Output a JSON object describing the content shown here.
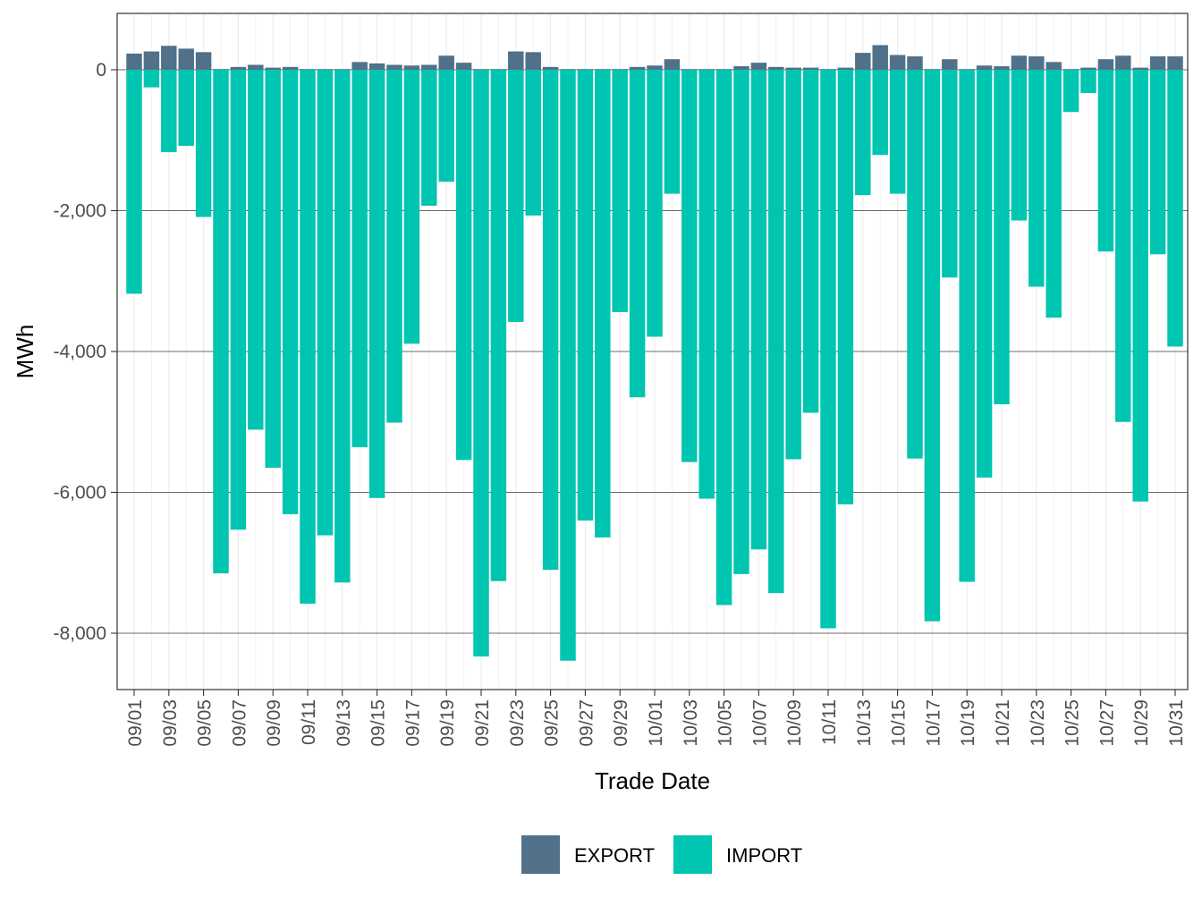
{
  "chart_data": {
    "type": "bar",
    "stacked": true,
    "title": "",
    "xlabel": "Trade Date",
    "ylabel": "MWh",
    "ylim": [
      -8800,
      800
    ],
    "yticks": [
      0,
      -2000,
      -4000,
      -6000,
      -8000
    ],
    "ytick_labels": [
      "0",
      "-2,000",
      "-4,000",
      "-6,000",
      "-8,000"
    ],
    "grid": true,
    "legend_position": "bottom",
    "categories": [
      "09/01",
      "09/02",
      "09/03",
      "09/04",
      "09/05",
      "09/06",
      "09/07",
      "09/08",
      "09/09",
      "09/10",
      "09/11",
      "09/12",
      "09/13",
      "09/14",
      "09/15",
      "09/16",
      "09/17",
      "09/18",
      "09/19",
      "09/20",
      "09/21",
      "09/22",
      "09/23",
      "09/24",
      "09/25",
      "09/26",
      "09/27",
      "09/28",
      "09/29",
      "09/30",
      "10/01",
      "10/02",
      "10/03",
      "10/04",
      "10/05",
      "10/06",
      "10/07",
      "10/08",
      "10/09",
      "10/10",
      "10/11",
      "10/12",
      "10/13",
      "10/14",
      "10/15",
      "10/16",
      "10/17",
      "10/18",
      "10/19",
      "10/20",
      "10/21",
      "10/22",
      "10/23",
      "10/24",
      "10/25",
      "10/26",
      "10/27",
      "10/28",
      "10/29",
      "10/30",
      "10/31"
    ],
    "tick_labels": [
      "09/01",
      "09/03",
      "09/05",
      "09/07",
      "09/09",
      "09/11",
      "09/13",
      "09/15",
      "09/17",
      "09/19",
      "09/21",
      "09/23",
      "09/25",
      "09/27",
      "09/29",
      "10/01",
      "10/03",
      "10/05",
      "10/07",
      "10/09",
      "10/11",
      "10/13",
      "10/15",
      "10/17",
      "10/19",
      "10/21",
      "10/23",
      "10/25",
      "10/27",
      "10/29",
      "10/31"
    ],
    "series": [
      {
        "name": "EXPORT",
        "color": "#51718a",
        "values": [
          230,
          260,
          340,
          300,
          250,
          10,
          40,
          70,
          30,
          40,
          10,
          10,
          10,
          110,
          90,
          70,
          60,
          70,
          200,
          100,
          10,
          10,
          260,
          250,
          40,
          10,
          10,
          10,
          10,
          40,
          60,
          150,
          10,
          10,
          10,
          50,
          100,
          40,
          30,
          30,
          10,
          30,
          240,
          350,
          210,
          190,
          10,
          150,
          10,
          60,
          50,
          200,
          190,
          110,
          10,
          30,
          150,
          200,
          30,
          190,
          190
        ]
      },
      {
        "name": "IMPORT",
        "color": "#00c5b0",
        "values": [
          -3180,
          -250,
          -1170,
          -1080,
          -2090,
          -7150,
          -6530,
          -5110,
          -5650,
          -6310,
          -7580,
          -6610,
          -7280,
          -5360,
          -6080,
          -5010,
          -3890,
          -1930,
          -1590,
          -5540,
          -8330,
          -7260,
          -3580,
          -2070,
          -7100,
          -8390,
          -6400,
          -6640,
          -3440,
          -4650,
          -3790,
          -1760,
          -5570,
          -6090,
          -7600,
          -7160,
          -6810,
          -7430,
          -5530,
          -4870,
          -7930,
          -6170,
          -1780,
          -1210,
          -1760,
          -5520,
          -7830,
          -2950,
          -7270,
          -5790,
          -4750,
          -2140,
          -3080,
          -3520,
          -600,
          -330,
          -2580,
          -5000,
          -6130,
          -2620,
          -3930
        ]
      }
    ]
  }
}
